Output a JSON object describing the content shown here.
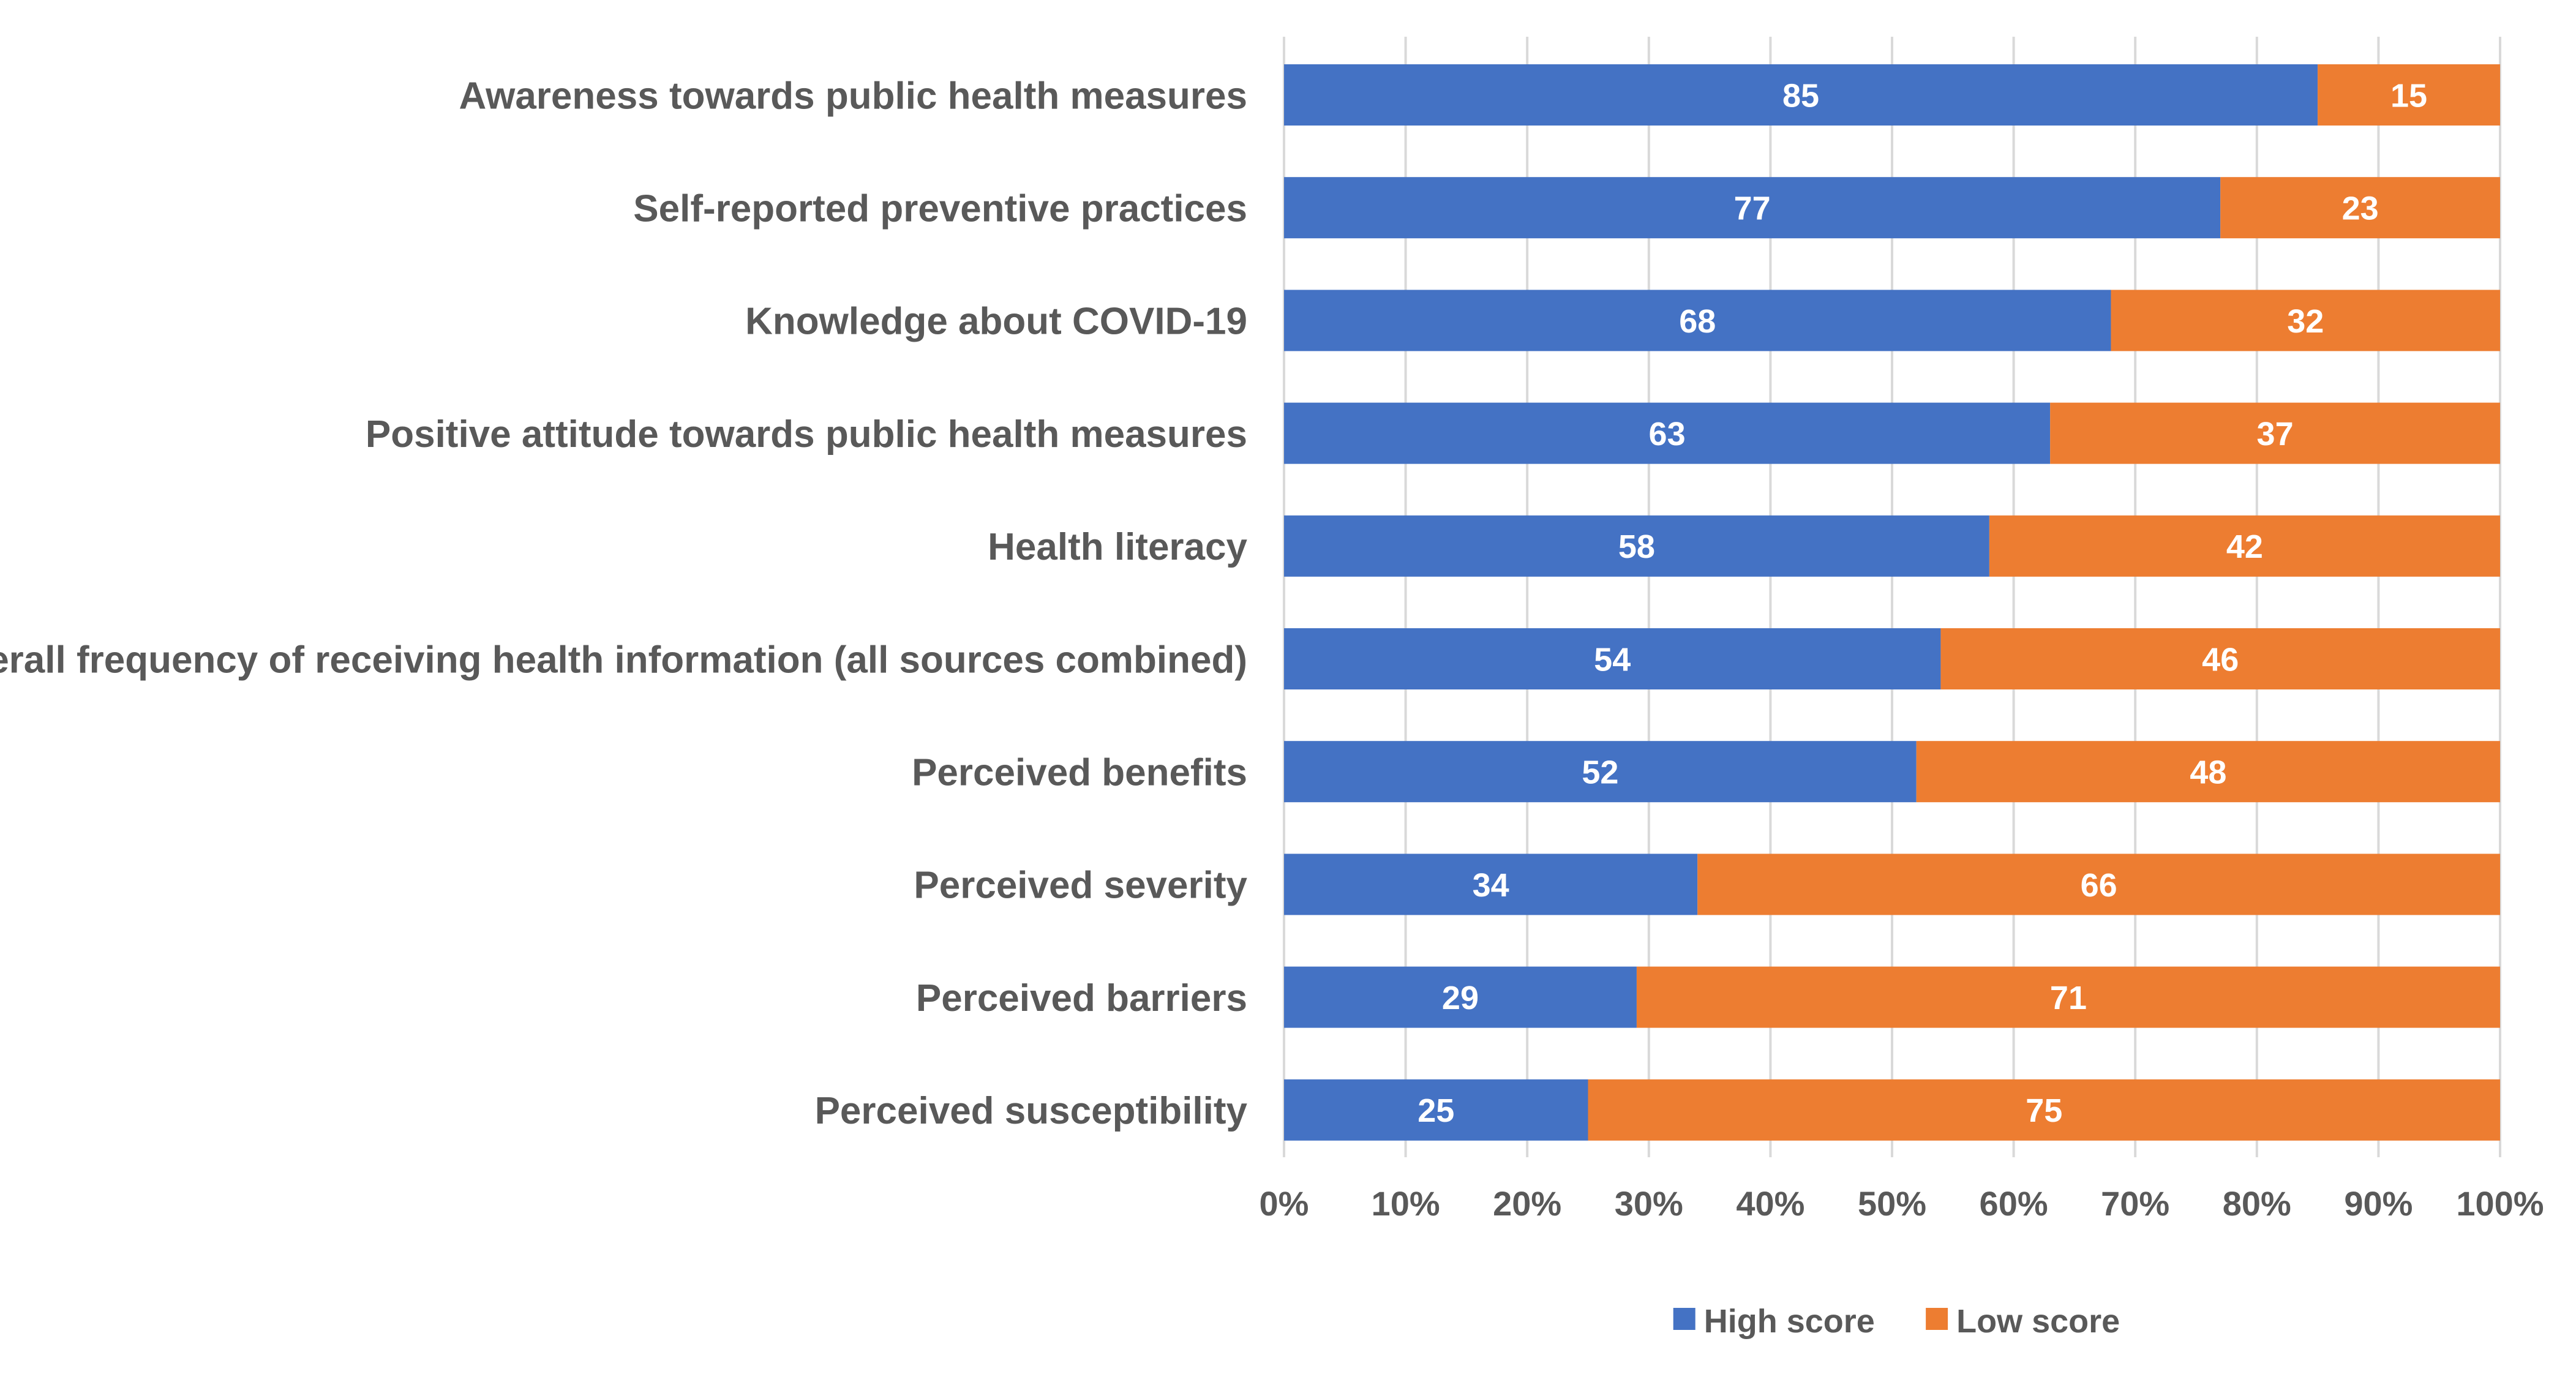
{
  "chart_data": {
    "type": "bar",
    "orientation": "horizontal",
    "stacked": "percent",
    "title": "",
    "xlabel": "",
    "ylabel": "",
    "xlim": [
      0,
      100
    ],
    "x_ticks": [
      "0%",
      "10%",
      "20%",
      "30%",
      "40%",
      "50%",
      "60%",
      "70%",
      "80%",
      "90%",
      "100%"
    ],
    "grid": true,
    "legend_position": "bottom",
    "categories": [
      "Awareness towards public health measures",
      "Self-reported preventive practices",
      "Knowledge about COVID-19",
      "Positive attitude towards public health measures",
      "Health literacy",
      "Overall frequency of receiving health information (all sources combined)",
      "Perceived benefits",
      "Perceived severity",
      "Perceived barriers",
      "Perceived susceptibility"
    ],
    "series": [
      {
        "name": "High score",
        "color": "#4472C4",
        "values": [
          85,
          77,
          68,
          63,
          58,
          54,
          52,
          34,
          29,
          25
        ]
      },
      {
        "name": "Low score",
        "color": "#ED7D31",
        "values": [
          15,
          23,
          32,
          37,
          42,
          46,
          48,
          66,
          71,
          75
        ]
      }
    ]
  }
}
